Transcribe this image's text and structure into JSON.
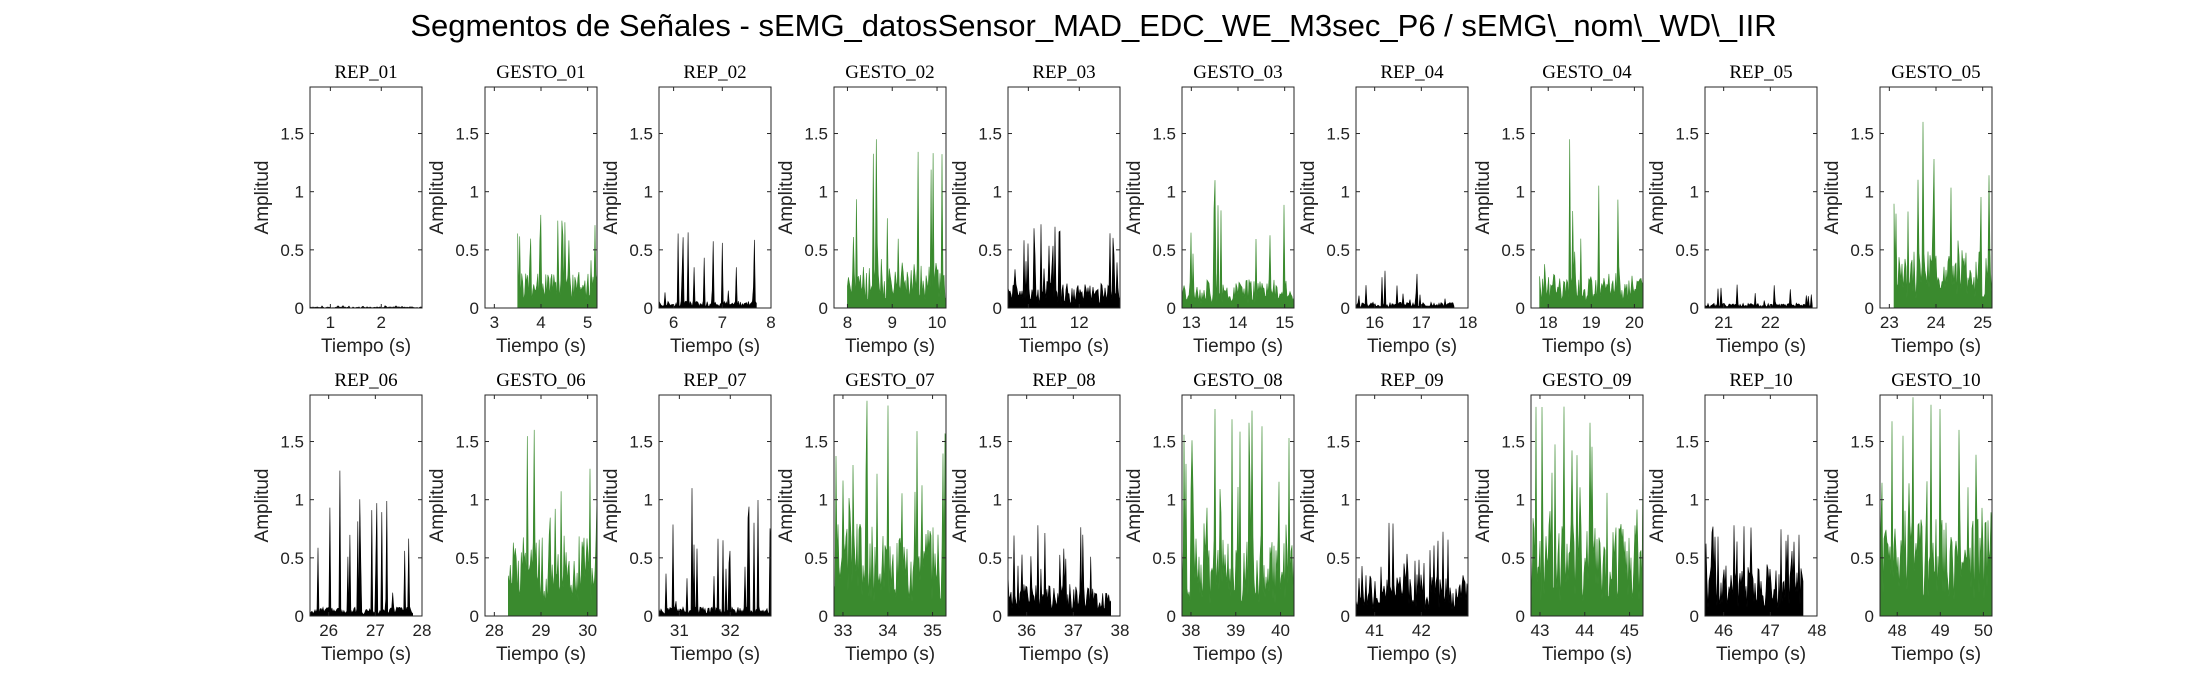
{
  "title": "Segmentos de Señales - sEMG_datosSensor_MAD_EDC_WE_M3sec_P6 / sEMG\\_nom\\_WD\\_IIR",
  "colors": {
    "rep": "#000000",
    "gesto": "#3a8a2e"
  },
  "chart_data": [
    {
      "type": "area",
      "title": "REP_01",
      "kind": "rep",
      "xlim": [
        0.6,
        2.8
      ],
      "xticks": [
        1,
        2
      ],
      "xtick_labels": [
        "1",
        "2"
      ],
      "ylim": [
        0,
        1.9
      ],
      "yticks": [
        0,
        0.5,
        1,
        1.5
      ],
      "ytick_labels": [
        "0",
        "0.5",
        "1",
        "1.5"
      ],
      "xlabel": "Tiempo (s)",
      "ylabel": "Amplitud",
      "signal": {
        "start": 0.6,
        "end": 2.8,
        "base": 0.01,
        "peak": 0.02
      }
    },
    {
      "type": "area",
      "title": "GESTO_01",
      "kind": "gesto",
      "xlim": [
        2.8,
        5.2
      ],
      "xticks": [
        3,
        4,
        5
      ],
      "xtick_labels": [
        "3",
        "4",
        "5"
      ],
      "ylim": [
        0,
        1.9
      ],
      "yticks": [
        0,
        0.5,
        1,
        1.5
      ],
      "ytick_labels": [
        "0",
        "0.5",
        "1",
        "1.5"
      ],
      "xlabel": "Tiempo (s)",
      "ylabel": "Amplitud",
      "signal": {
        "start": 3.5,
        "end": 5.2,
        "base": 0.3,
        "peak": 0.8
      }
    },
    {
      "type": "area",
      "title": "REP_02",
      "kind": "rep",
      "xlim": [
        5.7,
        8.0
      ],
      "xticks": [
        6,
        7,
        8
      ],
      "xtick_labels": [
        "6",
        "7",
        "8"
      ],
      "ylim": [
        0,
        1.9
      ],
      "yticks": [
        0,
        0.5,
        1,
        1.5
      ],
      "ytick_labels": [
        "0",
        "0.5",
        "1",
        "1.5"
      ],
      "xlabel": "Tiempo (s)",
      "ylabel": "Amplitud",
      "signal": {
        "start": 5.7,
        "end": 7.7,
        "base": 0.06,
        "peak": 0.65
      }
    },
    {
      "type": "area",
      "title": "GESTO_02",
      "kind": "gesto",
      "xlim": [
        7.7,
        10.2
      ],
      "xticks": [
        8,
        9,
        10
      ],
      "xtick_labels": [
        "8",
        "9",
        "10"
      ],
      "ylim": [
        0,
        1.9
      ],
      "yticks": [
        0,
        0.5,
        1,
        1.5
      ],
      "ytick_labels": [
        "0",
        "0.5",
        "1",
        "1.5"
      ],
      "xlabel": "Tiempo (s)",
      "ylabel": "Amplitud",
      "signal": {
        "start": 8.0,
        "end": 10.2,
        "base": 0.4,
        "peak": 1.45
      }
    },
    {
      "type": "area",
      "title": "REP_03",
      "kind": "rep",
      "xlim": [
        10.6,
        12.8
      ],
      "xticks": [
        11,
        12
      ],
      "xtick_labels": [
        "11",
        "12"
      ],
      "ylim": [
        0,
        1.9
      ],
      "yticks": [
        0,
        0.5,
        1,
        1.5
      ],
      "ytick_labels": [
        "0",
        "0.5",
        "1",
        "1.5"
      ],
      "xlabel": "Tiempo (s)",
      "ylabel": "Amplitud",
      "signal": {
        "start": 10.6,
        "end": 12.8,
        "base": 0.22,
        "peak": 0.72
      }
    },
    {
      "type": "area",
      "title": "GESTO_03",
      "kind": "gesto",
      "xlim": [
        12.8,
        15.2
      ],
      "xticks": [
        13,
        14,
        15
      ],
      "xtick_labels": [
        "13",
        "14",
        "15"
      ],
      "ylim": [
        0,
        1.9
      ],
      "yticks": [
        0,
        0.5,
        1,
        1.5
      ],
      "ytick_labels": [
        "0",
        "0.5",
        "1",
        "1.5"
      ],
      "xlabel": "Tiempo (s)",
      "ylabel": "Amplitud",
      "signal": {
        "start": 12.8,
        "end": 15.2,
        "base": 0.25,
        "peak": 1.1
      }
    },
    {
      "type": "area",
      "title": "REP_04",
      "kind": "rep",
      "xlim": [
        15.6,
        18.0
      ],
      "xticks": [
        16,
        17,
        18
      ],
      "xtick_labels": [
        "16",
        "17",
        "18"
      ],
      "ylim": [
        0,
        1.9
      ],
      "yticks": [
        0,
        0.5,
        1,
        1.5
      ],
      "ytick_labels": [
        "0",
        "0.5",
        "1",
        "1.5"
      ],
      "xlabel": "Tiempo (s)",
      "ylabel": "Amplitud",
      "signal": {
        "start": 15.6,
        "end": 17.7,
        "base": 0.05,
        "peak": 0.32
      }
    },
    {
      "type": "area",
      "title": "GESTO_04",
      "kind": "gesto",
      "xlim": [
        17.6,
        20.2
      ],
      "xticks": [
        18,
        19,
        20
      ],
      "xtick_labels": [
        "18",
        "19",
        "20"
      ],
      "ylim": [
        0,
        1.9
      ],
      "yticks": [
        0,
        0.5,
        1,
        1.5
      ],
      "ytick_labels": [
        "0",
        "0.5",
        "1",
        "1.5"
      ],
      "xlabel": "Tiempo (s)",
      "ylabel": "Amplitud",
      "signal": {
        "start": 17.8,
        "end": 20.2,
        "base": 0.3,
        "peak": 1.45
      }
    },
    {
      "type": "area",
      "title": "REP_05",
      "kind": "rep",
      "xlim": [
        20.6,
        23.0
      ],
      "xticks": [
        21,
        22
      ],
      "xtick_labels": [
        "21",
        "22"
      ],
      "ylim": [
        0,
        1.9
      ],
      "yticks": [
        0,
        0.5,
        1,
        1.5
      ],
      "ytick_labels": [
        "0",
        "0.5",
        "1",
        "1.5"
      ],
      "xlabel": "Tiempo (s)",
      "ylabel": "Amplitud",
      "signal": {
        "start": 20.6,
        "end": 22.9,
        "base": 0.04,
        "peak": 0.2
      }
    },
    {
      "type": "area",
      "title": "GESTO_05",
      "kind": "gesto",
      "xlim": [
        22.8,
        25.2
      ],
      "xticks": [
        23,
        24,
        25
      ],
      "xtick_labels": [
        "23",
        "24",
        "25"
      ],
      "ylim": [
        0,
        1.9
      ],
      "yticks": [
        0,
        0.5,
        1,
        1.5
      ],
      "ytick_labels": [
        "0",
        "0.5",
        "1",
        "1.5"
      ],
      "xlabel": "Tiempo (s)",
      "ylabel": "Amplitud",
      "signal": {
        "start": 23.1,
        "end": 25.2,
        "base": 0.5,
        "peak": 1.6
      }
    },
    {
      "type": "area",
      "title": "REP_06",
      "kind": "rep",
      "xlim": [
        25.6,
        28.0
      ],
      "xticks": [
        26,
        27,
        28
      ],
      "xtick_labels": [
        "26",
        "27",
        "28"
      ],
      "ylim": [
        0,
        1.9
      ],
      "yticks": [
        0,
        0.5,
        1,
        1.5
      ],
      "ytick_labels": [
        "0",
        "0.5",
        "1",
        "1.5"
      ],
      "xlabel": "Tiempo (s)",
      "ylabel": "Amplitud",
      "signal": {
        "start": 25.6,
        "end": 27.8,
        "base": 0.08,
        "peak": 1.25
      }
    },
    {
      "type": "area",
      "title": "GESTO_06",
      "kind": "gesto",
      "xlim": [
        27.8,
        30.2
      ],
      "xticks": [
        28,
        29,
        30
      ],
      "xtick_labels": [
        "28",
        "29",
        "30"
      ],
      "ylim": [
        0,
        1.9
      ],
      "yticks": [
        0,
        0.5,
        1,
        1.5
      ],
      "ytick_labels": [
        "0",
        "0.5",
        "1",
        "1.5"
      ],
      "xlabel": "Tiempo (s)",
      "ylabel": "Amplitud",
      "signal": {
        "start": 28.3,
        "end": 30.2,
        "base": 0.7,
        "peak": 1.6
      }
    },
    {
      "type": "area",
      "title": "REP_07",
      "kind": "rep",
      "xlim": [
        30.6,
        32.8
      ],
      "xticks": [
        31,
        32
      ],
      "xtick_labels": [
        "31",
        "32"
      ],
      "ylim": [
        0,
        1.9
      ],
      "yticks": [
        0,
        0.5,
        1,
        1.5
      ],
      "ytick_labels": [
        "0",
        "0.5",
        "1",
        "1.5"
      ],
      "xlabel": "Tiempo (s)",
      "ylabel": "Amplitud",
      "signal": {
        "start": 30.6,
        "end": 32.8,
        "base": 0.08,
        "peak": 1.1
      }
    },
    {
      "type": "area",
      "title": "GESTO_07",
      "kind": "gesto",
      "xlim": [
        32.8,
        35.3
      ],
      "xticks": [
        33,
        34,
        35
      ],
      "xtick_labels": [
        "33",
        "34",
        "35"
      ],
      "ylim": [
        0,
        1.9
      ],
      "yticks": [
        0,
        0.5,
        1,
        1.5
      ],
      "ytick_labels": [
        "0",
        "0.5",
        "1",
        "1.5"
      ],
      "xlabel": "Tiempo (s)",
      "ylabel": "Amplitud",
      "signal": {
        "start": 32.8,
        "end": 35.3,
        "base": 0.8,
        "peak": 1.85
      }
    },
    {
      "type": "area",
      "title": "REP_08",
      "kind": "rep",
      "xlim": [
        35.6,
        38.0
      ],
      "xticks": [
        36,
        37,
        38
      ],
      "xtick_labels": [
        "36",
        "37",
        "38"
      ],
      "ylim": [
        0,
        1.9
      ],
      "yticks": [
        0,
        0.5,
        1,
        1.5
      ],
      "ytick_labels": [
        "0",
        "0.5",
        "1",
        "1.5"
      ],
      "xlabel": "Tiempo (s)",
      "ylabel": "Amplitud",
      "signal": {
        "start": 35.6,
        "end": 37.8,
        "base": 0.28,
        "peak": 0.78
      }
    },
    {
      "type": "area",
      "title": "GESTO_08",
      "kind": "gesto",
      "xlim": [
        37.8,
        40.3
      ],
      "xticks": [
        38,
        39,
        40
      ],
      "xtick_labels": [
        "38",
        "39",
        "40"
      ],
      "ylim": [
        0,
        1.9
      ],
      "yticks": [
        0,
        0.5,
        1,
        1.5
      ],
      "ytick_labels": [
        "0",
        "0.5",
        "1",
        "1.5"
      ],
      "xlabel": "Tiempo (s)",
      "ylabel": "Amplitud",
      "signal": {
        "start": 37.8,
        "end": 40.3,
        "base": 0.7,
        "peak": 1.78
      }
    },
    {
      "type": "area",
      "title": "REP_09",
      "kind": "rep",
      "xlim": [
        40.6,
        43.0
      ],
      "xticks": [
        41,
        42
      ],
      "xtick_labels": [
        "41",
        "42"
      ],
      "ylim": [
        0,
        1.9
      ],
      "yticks": [
        0,
        0.5,
        1,
        1.5
      ],
      "ytick_labels": [
        "0",
        "0.5",
        "1",
        "1.5"
      ],
      "xlabel": "Tiempo (s)",
      "ylabel": "Amplitud",
      "signal": {
        "start": 40.6,
        "end": 43.0,
        "base": 0.35,
        "peak": 0.8
      }
    },
    {
      "type": "area",
      "title": "GESTO_09",
      "kind": "gesto",
      "xlim": [
        42.8,
        45.3
      ],
      "xticks": [
        43,
        44,
        45
      ],
      "xtick_labels": [
        "43",
        "44",
        "45"
      ],
      "ylim": [
        0,
        1.9
      ],
      "yticks": [
        0,
        0.5,
        1,
        1.5
      ],
      "ytick_labels": [
        "0",
        "0.5",
        "1",
        "1.5"
      ],
      "xlabel": "Tiempo (s)",
      "ylabel": "Amplitud",
      "signal": {
        "start": 42.8,
        "end": 45.3,
        "base": 0.8,
        "peak": 1.8
      }
    },
    {
      "type": "area",
      "title": "REP_10",
      "kind": "rep",
      "xlim": [
        45.6,
        48.0
      ],
      "xticks": [
        46,
        47,
        48
      ],
      "xtick_labels": [
        "46",
        "47",
        "48"
      ],
      "ylim": [
        0,
        1.9
      ],
      "yticks": [
        0,
        0.5,
        1,
        1.5
      ],
      "ytick_labels": [
        "0",
        "0.5",
        "1",
        "1.5"
      ],
      "xlabel": "Tiempo (s)",
      "ylabel": "Amplitud",
      "signal": {
        "start": 45.6,
        "end": 47.7,
        "base": 0.45,
        "peak": 0.78
      }
    },
    {
      "type": "area",
      "title": "GESTO_10",
      "kind": "gesto",
      "xlim": [
        47.6,
        50.2
      ],
      "xticks": [
        48,
        49,
        50
      ],
      "xtick_labels": [
        "48",
        "49",
        "50"
      ],
      "ylim": [
        0,
        1.9
      ],
      "yticks": [
        0,
        0.5,
        1,
        1.5
      ],
      "ytick_labels": [
        "0",
        "0.5",
        "1",
        "1.5"
      ],
      "xlabel": "Tiempo (s)",
      "ylabel": "Amplitud",
      "signal": {
        "start": 47.6,
        "end": 50.2,
        "base": 0.85,
        "peak": 1.88
      }
    }
  ]
}
